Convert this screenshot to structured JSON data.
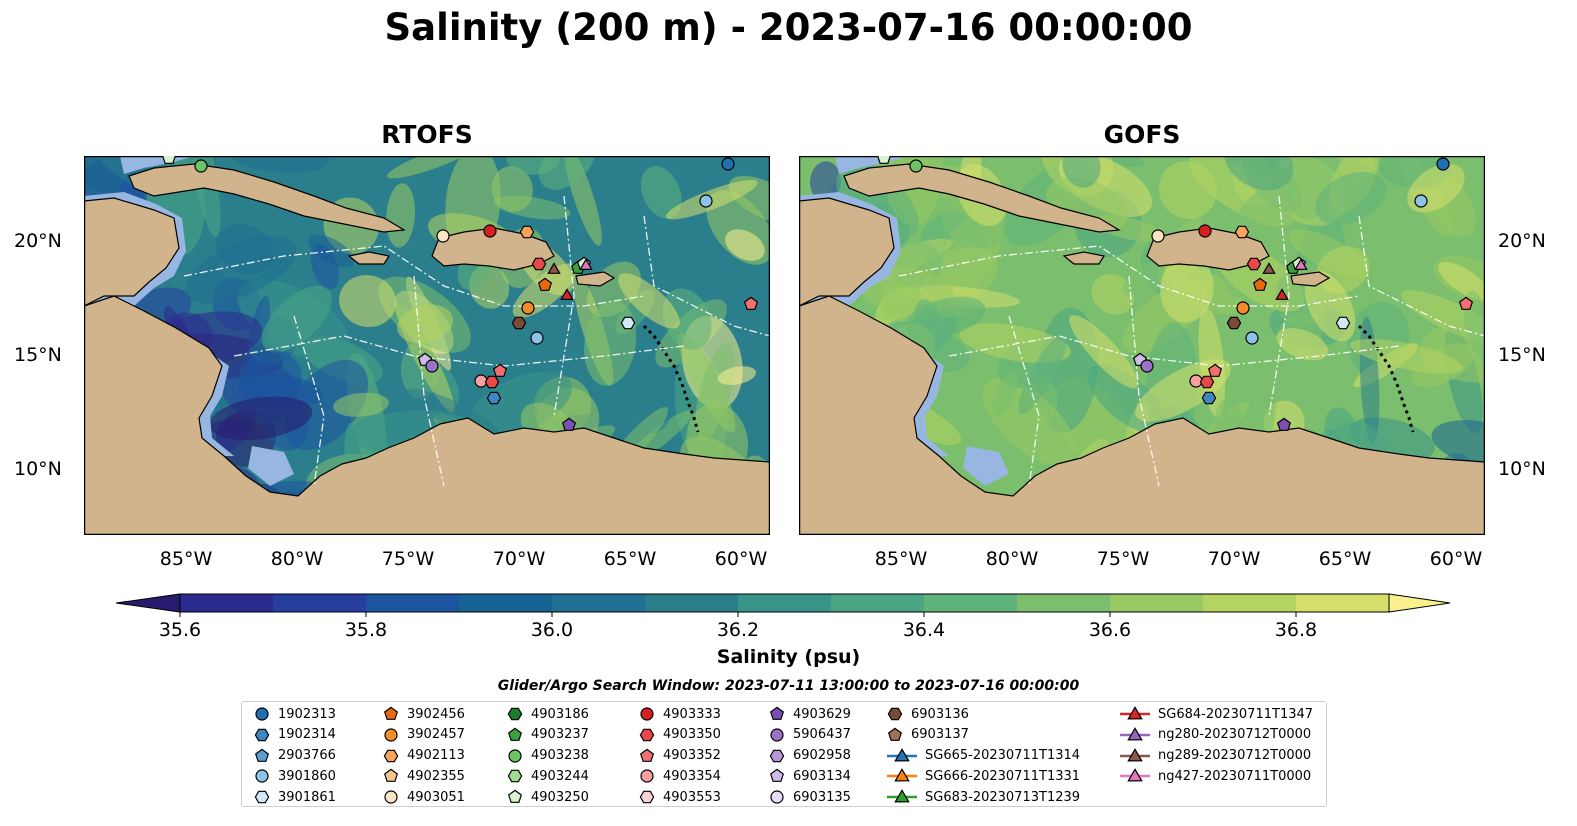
{
  "title": "Salinity (200 m) - 2023-07-16 00:00:00",
  "panels": [
    {
      "title": "RTOFS"
    },
    {
      "title": "GOFS"
    }
  ],
  "lat_ticks": [
    "20°N",
    "15°N",
    "10°N"
  ],
  "lon_ticks": [
    "85°W",
    "80°W",
    "75°W",
    "70°W",
    "65°W",
    "60°W"
  ],
  "colorbar": {
    "label": "Salinity (psu)",
    "ticks": [
      "35.6",
      "35.8",
      "36.0",
      "36.2",
      "36.4",
      "36.6",
      "36.8"
    ],
    "colors": [
      "#281a6c",
      "#2b2a8e",
      "#263f9f",
      "#1c54a0",
      "#196394",
      "#1f7092",
      "#2b7e8c",
      "#389389",
      "#4aa583",
      "#5fb37b",
      "#7bbf6e",
      "#98c963",
      "#b5d360",
      "#d5e06c",
      "#fbf08e"
    ]
  },
  "search_window": "Glider/Argo Search Window: 2023-07-11 13:00:00 to 2023-07-16 00:00:00",
  "legend": [
    {
      "label": "1902313",
      "marker": "circle",
      "color": "#1f6fb4"
    },
    {
      "label": "1902314",
      "marker": "hexagon",
      "color": "#3a87c4"
    },
    {
      "label": "2903766",
      "marker": "pentagon",
      "color": "#5b9fd2"
    },
    {
      "label": "3901860",
      "marker": "circle",
      "color": "#8fc2e8"
    },
    {
      "label": "3901861",
      "marker": "hexagon",
      "color": "#d3e8f8"
    },
    {
      "label": "3902456",
      "marker": "pentagon",
      "color": "#e96a0c"
    },
    {
      "label": "3902457",
      "marker": "circle",
      "color": "#f58b2a"
    },
    {
      "label": "4902113",
      "marker": "hexagon",
      "color": "#f9a459"
    },
    {
      "label": "4902355",
      "marker": "pentagon",
      "color": "#fbc38f"
    },
    {
      "label": "4903051",
      "marker": "circle",
      "color": "#fde3c6"
    },
    {
      "label": "4903186",
      "marker": "hexagon",
      "color": "#1a7f2c"
    },
    {
      "label": "4903237",
      "marker": "pentagon",
      "color": "#3aa142"
    },
    {
      "label": "4903238",
      "marker": "circle",
      "color": "#6cc465"
    },
    {
      "label": "4903244",
      "marker": "hexagon",
      "color": "#a1dc97"
    },
    {
      "label": "4903250",
      "marker": "pentagon",
      "color": "#d8f3d0"
    },
    {
      "label": "4903333",
      "marker": "circle",
      "color": "#d42020"
    },
    {
      "label": "4903350",
      "marker": "hexagon",
      "color": "#e84848"
    },
    {
      "label": "4903352",
      "marker": "pentagon",
      "color": "#f27070"
    },
    {
      "label": "4903354",
      "marker": "circle",
      "color": "#f8a0a0"
    },
    {
      "label": "4903553",
      "marker": "hexagon",
      "color": "#fcd2d2"
    },
    {
      "label": "4903629",
      "marker": "pentagon",
      "color": "#7b4fb3"
    },
    {
      "label": "5906437",
      "marker": "circle",
      "color": "#9b72c8"
    },
    {
      "label": "6902958",
      "marker": "hexagon",
      "color": "#b597d8"
    },
    {
      "label": "6903134",
      "marker": "pentagon",
      "color": "#cfbbe8"
    },
    {
      "label": "6903135",
      "marker": "circle",
      "color": "#e8dcf6"
    },
    {
      "label": "6903136",
      "marker": "hexagon",
      "color": "#7a4a38"
    },
    {
      "label": "6903137",
      "marker": "pentagon",
      "color": "#a0705c"
    },
    {
      "label": "SG665-20230711T1314",
      "marker": "triangle",
      "color": "#1f77b4"
    },
    {
      "label": "SG666-20230711T1331",
      "marker": "triangle",
      "color": "#ff7f0e"
    },
    {
      "label": "SG683-20230713T1239",
      "marker": "triangle",
      "color": "#2ca02c"
    },
    {
      "label": "SG684-20230711T1347",
      "marker": "triangle",
      "color": "#d62728"
    },
    {
      "label": "ng280-20230712T0000",
      "marker": "triangle",
      "color": "#9467bd"
    },
    {
      "label": "ng289-20230712T0000",
      "marker": "triangle",
      "color": "#8c564b"
    },
    {
      "label": "ng427-20230711T0000",
      "marker": "triangle",
      "color": "#e377c2"
    }
  ],
  "map_colors": {
    "land": "#d2b48c",
    "shelf": "#97b6e1",
    "rtofs_base": "#2b7e8c",
    "gofs_base": "#7bbf6e"
  }
}
